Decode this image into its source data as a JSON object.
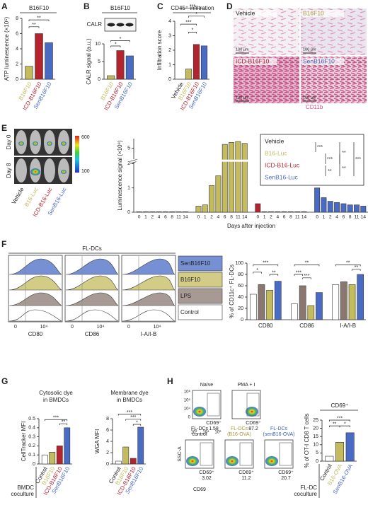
{
  "panel_labels": [
    "A",
    "B",
    "C",
    "D",
    "E",
    "F",
    "G",
    "H"
  ],
  "chart_data": [
    {
      "type": "bar",
      "title": "B16F10",
      "ylabel": "ATP luminescence (×10⁵)",
      "categories": [
        "B16F10",
        "ICD-B16F10",
        "SenB16F10"
      ],
      "values": [
        1.7,
        6.0,
        4.8
      ],
      "colors": [
        "#c4bb5e",
        "#b3242e",
        "#4a6bc4"
      ],
      "ylim": [
        0,
        8
      ],
      "yticks": [
        0,
        2,
        4,
        6,
        8
      ],
      "annotations": [
        "**",
        "**"
      ]
    },
    {
      "type": "bar",
      "title": "B16F10",
      "blot_label": "CALR",
      "ylabel": "CALR signal (a.u.)",
      "categories": [
        "B16F10",
        "ICD-B16F10",
        "SenB16F10"
      ],
      "values": [
        1.0,
        8.1,
        6.6
      ],
      "colors": [
        "#c4bb5e",
        "#b3242e",
        "#4a6bc4"
      ],
      "ylim": [
        0,
        10
      ],
      "yticks": [
        0,
        5,
        10
      ],
      "annotations": [
        "*",
        "*"
      ]
    },
    {
      "type": "bar",
      "title": "CD45⁺ infiltration",
      "ylabel": "Infiltration score",
      "categories": [
        "Vehicle",
        "B16F10",
        "ICD-B16F10",
        "SenB16F10"
      ],
      "values": [
        0,
        0.7,
        2.4,
        2.3
      ],
      "colors": [
        "#ffffff",
        "#c4bb5e",
        "#b3242e",
        "#4a6bc4"
      ],
      "ylim": [
        0,
        4
      ],
      "yticks": [
        0,
        1,
        2,
        3,
        4
      ],
      "annotations": [
        "***",
        "*",
        "***",
        "*"
      ]
    },
    {
      "type": "bar",
      "ylabel": "Luminescence signal (×10⁹)",
      "xlabel": "Days after injection",
      "categories": [
        0,
        1,
        2,
        4,
        6,
        8,
        11,
        14
      ],
      "series": [
        {
          "name": "Vehicle",
          "color": "#ffffff",
          "values": [
            0.02,
            0.02,
            0.02,
            0.02,
            0.02,
            0.02,
            0.02,
            0.02
          ]
        },
        {
          "name": "B16-Luc",
          "color": "#c4bb5e",
          "values": [
            0.25,
            0.3,
            1.1,
            1.5,
            5.4,
            5.6,
            5.7,
            5.5
          ]
        },
        {
          "name": "ICD-B16-Luc",
          "color": "#b3242e",
          "values": [
            0.35,
            0.02,
            0.02,
            0.02,
            0.02,
            0.02,
            0.02,
            0.02
          ]
        },
        {
          "name": "SenB16-Luc",
          "color": "#4a6bc4",
          "values": [
            1.0,
            0.6,
            0.45,
            0.4,
            0.35,
            0.3,
            0.3,
            0.25
          ]
        }
      ],
      "ylim": [
        0,
        6
      ],
      "ybreak": [
        2,
        4
      ],
      "yticks": [
        0,
        1,
        2,
        5
      ],
      "annotations": [
        "***",
        "***",
        "**",
        "**",
        "**",
        "***"
      ]
    },
    {
      "type": "bar",
      "ylabel": "% of CD11c⁺ FL-DCs",
      "categories": [
        "CD80",
        "CD86",
        "I-A/I-B"
      ],
      "series": [
        {
          "name": "Control",
          "color": "#ffffff",
          "values": [
            45,
            28,
            62
          ]
        },
        {
          "name": "LPS",
          "color": "#8a7870",
          "values": [
            62,
            60,
            67
          ]
        },
        {
          "name": "B16F10",
          "color": "#c4bb5e",
          "values": [
            52,
            25,
            62
          ]
        },
        {
          "name": "SenB16F10",
          "color": "#4a6bc4",
          "values": [
            68,
            48,
            80
          ]
        }
      ],
      "ylim": [
        0,
        100
      ],
      "yticks": [
        0,
        20,
        40,
        60,
        80,
        100
      ],
      "annotations": [
        "***",
        "*",
        "**",
        "**",
        "***",
        "***",
        "**",
        "**"
      ]
    },
    {
      "type": "bar",
      "title": [
        "Cytosolic dye",
        "in BMDCs"
      ],
      "ylabel": "CellTracker MFI",
      "xlabel": [
        "BMDC",
        "coculture"
      ],
      "categories": [
        "Control",
        "B16F10",
        "ICD-B16F10",
        "SenB16F10"
      ],
      "values": [
        0.1,
        0.13,
        0.2,
        0.4
      ],
      "colors": [
        "#ffffff",
        "#c4bb5e",
        "#b3242e",
        "#4a6bc4"
      ],
      "ylim": [
        0,
        0.5
      ],
      "yticks": [
        0,
        0.1,
        0.2,
        0.3,
        0.4,
        0.5
      ],
      "annotations": [
        "***",
        "**"
      ]
    },
    {
      "type": "bar",
      "title": [
        "Membrane dye",
        "in BMDCs"
      ],
      "ylabel": "WGA MFI",
      "categories": [
        "Control",
        "B16F10",
        "ICD-B16F10",
        "SenB16F10"
      ],
      "values": [
        0.5,
        3.0,
        1.0,
        6.5
      ],
      "colors": [
        "#ffffff",
        "#c4bb5e",
        "#b3242e",
        "#4a6bc4"
      ],
      "ylim": [
        0,
        8
      ],
      "yticks": [
        0,
        2,
        4,
        6,
        8
      ],
      "annotations": [
        "***",
        "***",
        "*"
      ]
    },
    {
      "type": "bar",
      "title": "CD69⁺",
      "ylabel": "% of OT-I CD8 T cells",
      "xlabel": [
        "FL-DC",
        "coculture"
      ],
      "categories": [
        "Control",
        "B16-OVA",
        "SenB16-OVA"
      ],
      "values": [
        3,
        11.5,
        17.3
      ],
      "colors": [
        "#ffffff",
        "#c4bb5e",
        "#4a6bc4"
      ],
      "ylim": [
        0,
        25
      ],
      "yticks": [
        0,
        5,
        10,
        15,
        20,
        25
      ],
      "annotations": [
        "***",
        "**",
        "*"
      ]
    }
  ],
  "histology": {
    "labels": [
      "Vehicle",
      "B16F10",
      "ICD-B16F10",
      "SenB16F10"
    ],
    "scale_bar": "100 µm",
    "stain": "CD11b"
  },
  "imaging": {
    "rows": [
      "Day 0",
      "Day 8"
    ],
    "colorbar": [
      600,
      100
    ]
  },
  "flow_F": {
    "title": "FL-DCs",
    "ticks": [
      "0",
      "10⁴"
    ]
  },
  "flow_H": {
    "plots": [
      {
        "title": [
          "Naïve"
        ],
        "gate": "CD69⁺",
        "percent": 1.58
      },
      {
        "title": [
          "PMA + I"
        ],
        "gate": "CD69⁺",
        "percent": 87.2
      },
      {
        "title": [
          "FL-DCs",
          "control"
        ],
        "gate": "CD69⁺",
        "percent": 3.02
      },
      {
        "title": [
          "FL-DCs",
          "(B16-OVA)"
        ],
        "gate": "CD69⁺",
        "percent": 11.2
      },
      {
        "title": [
          "FL-DCs",
          "(senB16-OVA)"
        ],
        "gate": "CD69⁺",
        "percent": 20.7
      }
    ],
    "yticks": [
      "10⁶",
      "10⁵",
      "10⁴",
      "0"
    ],
    "xticks": [
      "10²",
      "10⁴",
      "10⁶"
    ],
    "ylabel": "SSC-A",
    "xlabel": "CD69"
  }
}
